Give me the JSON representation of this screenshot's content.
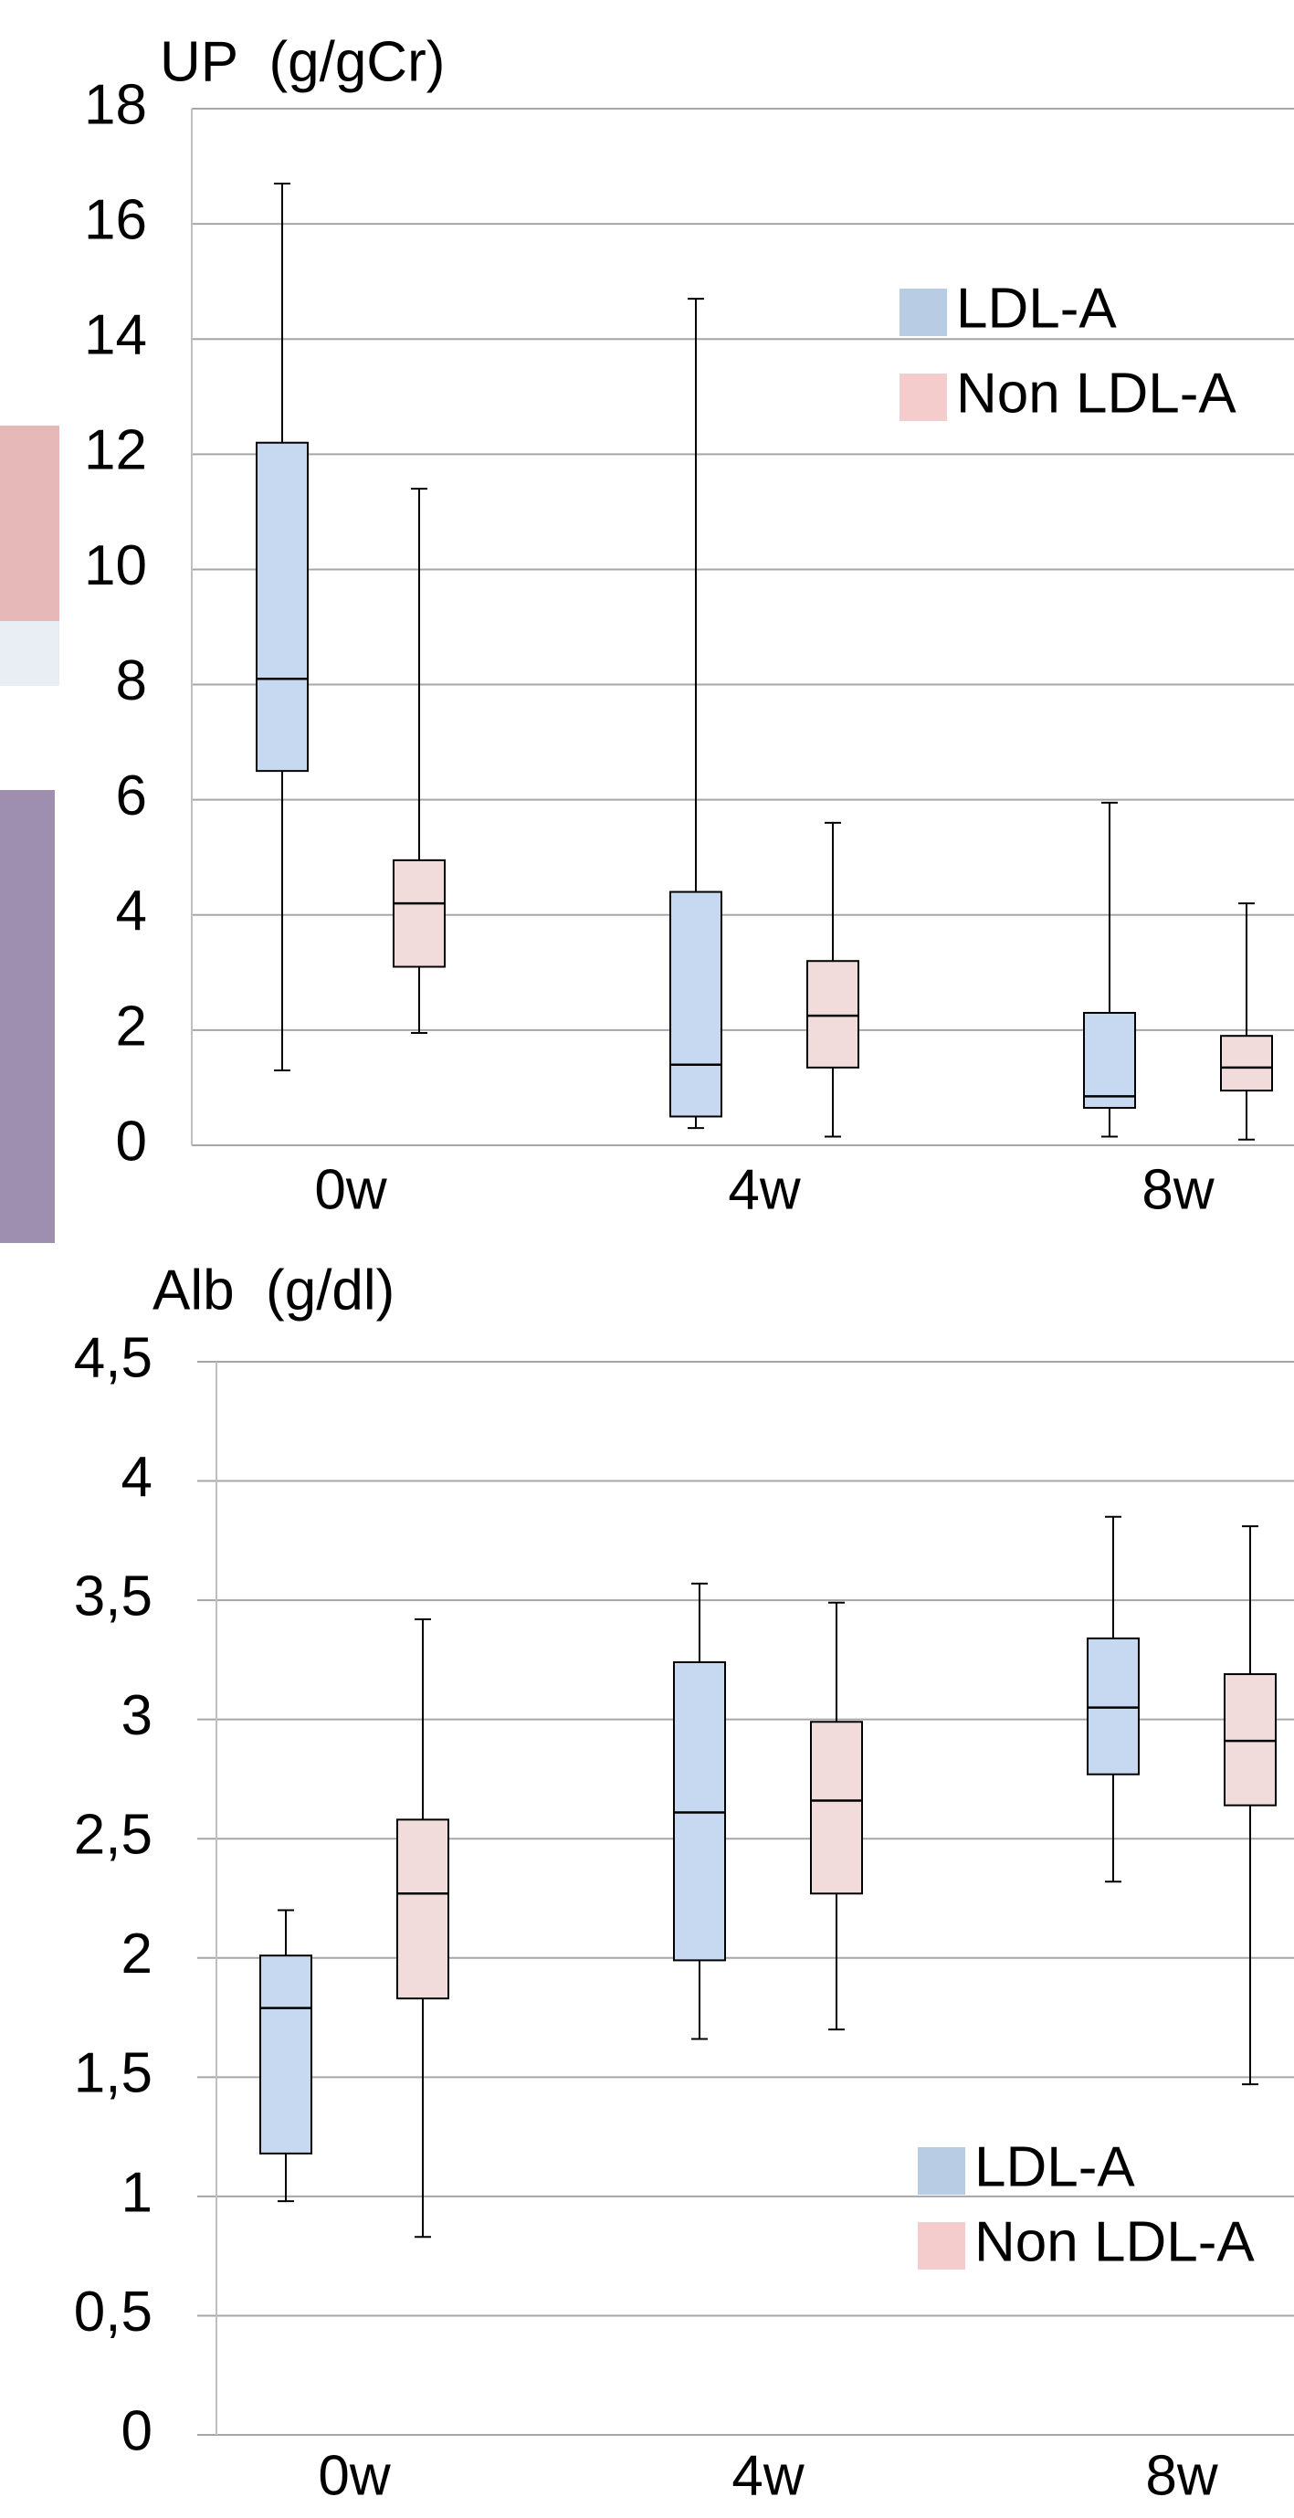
{
  "chart_data": [
    {
      "type": "box",
      "title": "UP  (g/gCr)",
      "categories": [
        "0w",
        "4w",
        "8w"
      ],
      "ylim": [
        0,
        18
      ],
      "yticks": [
        0,
        2,
        4,
        6,
        8,
        10,
        12,
        14,
        16,
        18
      ],
      "grid": true,
      "legend": "upper right",
      "series": [
        {
          "name": "LDL-A",
          "color": "#c6d9f1",
          "legend_color": "#b8cce4",
          "label_color": "#1f6fbf",
          "min": [
            1.3,
            0.3,
            0.15
          ],
          "q1": [
            6.5,
            0.5,
            0.65
          ],
          "median": [
            8.1,
            1.4,
            0.85
          ],
          "q3": [
            12.2,
            4.4,
            2.3
          ],
          "max": [
            16.7,
            14.7,
            5.95
          ]
        },
        {
          "name": "Non LDL-A",
          "color": "#f2dcdb",
          "legend_color": "#f4cccc",
          "label_color": "#ff0000",
          "min": [
            1.95,
            0.15,
            0.1
          ],
          "q1": [
            3.1,
            1.35,
            0.95
          ],
          "median": [
            4.2,
            2.25,
            1.35
          ],
          "q3": [
            4.95,
            3.2,
            1.9
          ],
          "max": [
            11.4,
            5.6,
            4.2
          ]
        }
      ]
    },
    {
      "type": "box",
      "title": "Alb  (g/dl)",
      "categories": [
        "0w",
        "4w",
        "8w"
      ],
      "ylim": [
        0,
        4.5
      ],
      "yticks": [
        0,
        {
          "value": 0.5,
          "label": "0,5"
        },
        1,
        {
          "value": 1.5,
          "label": "1,5"
        },
        2,
        {
          "value": 2.5,
          "label": "2,5"
        },
        3,
        {
          "value": 3.5,
          "label": "3,5"
        },
        4,
        {
          "value": 4.5,
          "label": "4,5"
        }
      ],
      "grid": true,
      "legend": "lower right",
      "series": [
        {
          "name": "LDL-A",
          "color": "#c6d9f1",
          "legend_color": "#b8cce4",
          "label_color": "#1f6fbf",
          "min": [
            0.98,
            1.66,
            2.32
          ],
          "q1": [
            1.18,
            1.99,
            2.77
          ],
          "median": [
            1.79,
            2.61,
            3.05
          ],
          "q3": [
            2.01,
            3.24,
            3.34
          ],
          "max": [
            2.2,
            3.57,
            3.85
          ]
        },
        {
          "name": "Non LDL-A",
          "color": "#f2dcdb",
          "legend_color": "#f4cccc",
          "label_color": "#ff0000",
          "min": [
            0.83,
            1.7,
            1.47
          ],
          "q1": [
            1.83,
            2.27,
            2.64
          ],
          "median": [
            2.27,
            2.66,
            2.91
          ],
          "q3": [
            2.58,
            2.99,
            3.19
          ],
          "max": [
            3.42,
            3.49,
            3.81
          ]
        }
      ]
    }
  ]
}
